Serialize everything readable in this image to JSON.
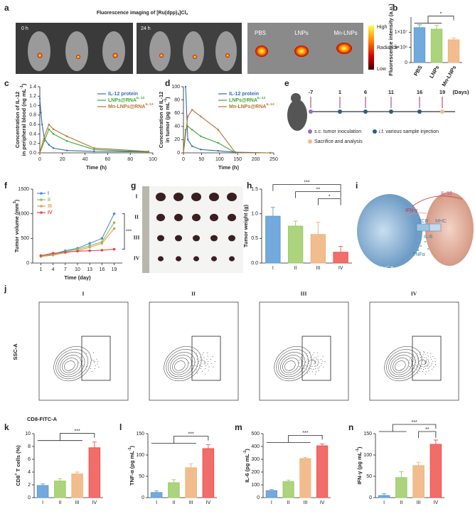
{
  "panel_labels": [
    "a",
    "b",
    "c",
    "d",
    "e",
    "f",
    "g",
    "h",
    "i",
    "j",
    "k",
    "l",
    "m",
    "n"
  ],
  "panel_a": {
    "title": [
      {
        "text": "Fluorescence imaging of [Ru(dpp)"
      },
      {
        "text": "3",
        "sub": true
      },
      {
        "text": "]Cl"
      },
      {
        "text": "2",
        "sub": true
      }
    ],
    "times": [
      "0 h",
      "24 h"
    ],
    "organs": [
      "PBS",
      "LNPs",
      "Mn-LNPs"
    ],
    "colorbar": [
      "High",
      "Radiance",
      "Low"
    ]
  },
  "panel_e": {
    "days": [
      "-7",
      "1",
      "6",
      "11",
      "16",
      "19"
    ],
    "unit": "(Days)",
    "legend": [
      [
        {
          "text": "s.c.",
          "italic": true
        },
        {
          "text": " tumor inoculation"
        }
      ],
      [
        {
          "text": "i.t.",
          "italic": true
        },
        {
          "text": " various sample injection"
        }
      ],
      [
        {
          "text": "Sacrifice and analysis"
        }
      ]
    ]
  },
  "panel_g": {
    "rows": [
      "I",
      "II",
      "III",
      "IV"
    ]
  },
  "panel_i": {
    "labels": [
      "IL-12",
      "IFN-γ",
      "TCR",
      "MHC",
      "IL-6",
      "TNFα"
    ],
    "cells": [
      [
        {
          "text": "CD8"
        },
        {
          "text": "+",
          "sup": true
        },
        {
          "text": " T cell"
        }
      ],
      [
        {
          "text": "Tumor cell"
        }
      ]
    ]
  },
  "panel_j": {
    "groups": [
      "I",
      "II",
      "III",
      "IV"
    ],
    "xlabel": "CD8-FITC-A",
    "ylabel": "SSC-A"
  },
  "chart_data": [
    {
      "type": "bar",
      "ylabel": [
        [
          {
            "text": "Fluorescence intensity (a.u.)"
          }
        ]
      ],
      "categories": [
        "PBS",
        "LNPs",
        "Mn-LNPs"
      ],
      "values": [
        11500000,
        11000000,
        7500000
      ],
      "errors": [
        1000000,
        1300000,
        600000
      ],
      "colors": [
        "#5b9bd5",
        "#9ccc65",
        "#f0b27a"
      ],
      "ylim": [
        0,
        15000000
      ],
      "yticks": [
        0,
        {
          "value": 5000000,
          "label": "5×10⁶"
        },
        {
          "value": 10000000,
          "label": "1×10⁷"
        }
      ],
      "x_label_rotation": -60,
      "significance": [
        {
          "from": [
            0,
            1
          ],
          "to": 2,
          "label": "*"
        }
      ]
    },
    {
      "type": "line",
      "xlabel": "Time (h)",
      "ylabel": [
        [
          {
            "text": "Concentration of IL-12"
          }
        ],
        [
          {
            "text": "in peripheral blood (ng mL"
          },
          {
            "text": "-1",
            "sup": true
          },
          {
            "text": ")"
          }
        ]
      ],
      "xlim": [
        0,
        100
      ],
      "xticks": [
        0,
        20,
        40,
        60,
        80,
        100
      ],
      "ylim": [
        0,
        1.4
      ],
      "yticks": [
        {
          "value": 0,
          "label": "0.0"
        },
        0.2,
        0.4,
        0.6,
        0.8,
        {
          "value": 1,
          "label": "1.0"
        },
        1.2,
        1.4
      ],
      "legend": "upper right",
      "series": [
        {
          "name": "IL-12 protein",
          "color": "#2f6db5",
          "x": [
            0,
            1,
            2,
            4,
            8,
            12,
            24,
            48,
            96
          ],
          "values": [
            1.15,
            0.85,
            0.6,
            0.3,
            0.17,
            0.1,
            0.05,
            0.03,
            0.02
          ]
        },
        {
          "name": [
            {
              "text": "LNPs@RNA"
            },
            {
              "text": "IL-12",
              "sup": true
            }
          ],
          "color": "#3aa935",
          "x": [
            0,
            4,
            8,
            12,
            24,
            48,
            96
          ],
          "values": [
            0,
            0.25,
            0.5,
            0.4,
            0.25,
            0.07,
            0.02
          ]
        },
        {
          "name": [
            {
              "text": "Mn-LNPs@RNA"
            },
            {
              "text": "IL-12",
              "sup": true
            }
          ],
          "color": "#b8732a",
          "x": [
            0,
            4,
            8,
            12,
            24,
            48,
            96
          ],
          "values": [
            0,
            0.35,
            0.6,
            0.5,
            0.35,
            0.1,
            0.03
          ]
        }
      ]
    },
    {
      "type": "line",
      "xlabel": "Time (h)",
      "ylabel": [
        [
          {
            "text": "Concentration of IL-12"
          }
        ],
        [
          {
            "text": "in tumor (pg mL"
          },
          {
            "text": "-1",
            "sup": true
          },
          {
            "text": ")"
          }
        ]
      ],
      "xlim": [
        0,
        250
      ],
      "xticks": [
        0,
        50,
        100,
        150,
        200,
        250
      ],
      "ylim": [
        0,
        100
      ],
      "yticks": [
        0,
        20,
        40,
        60,
        80,
        100
      ],
      "legend": "upper right",
      "series": [
        {
          "name": "IL-12 protein",
          "color": "#2f6db5",
          "x": [
            6,
            12,
            24,
            48,
            96,
            144,
            240
          ],
          "values": [
            100,
            20,
            10,
            5,
            3,
            1,
            0
          ]
        },
        {
          "name": [
            {
              "text": "LNPs@RNA"
            },
            {
              "text": "IL-12",
              "sup": true
            }
          ],
          "color": "#3aa935",
          "x": [
            0,
            6,
            12,
            24,
            48,
            96,
            144,
            240
          ],
          "values": [
            0,
            35,
            40,
            35,
            25,
            15,
            0,
            0
          ]
        },
        {
          "name": [
            {
              "text": "Mn-LNPs@RNA"
            },
            {
              "text": "IL-12",
              "sup": true
            }
          ],
          "color": "#b8732a",
          "x": [
            0,
            12,
            24,
            48,
            96,
            144,
            240
          ],
          "values": [
            0,
            55,
            65,
            55,
            35,
            0,
            0
          ]
        }
      ]
    },
    {
      "type": "line",
      "xlabel": "Time (day)",
      "ylabel": [
        [
          {
            "text": "Tumor volume (mm"
          },
          {
            "text": "3",
            "sup": true
          },
          {
            "text": ")"
          }
        ]
      ],
      "xlim": [
        -1,
        21
      ],
      "xticks": [
        1,
        4,
        7,
        10,
        13,
        16,
        19
      ],
      "ylim": [
        0,
        1500
      ],
      "yticks": [
        0,
        500,
        1000,
        1500
      ],
      "legend": "upper left",
      "markers": true,
      "series": [
        {
          "name": "I",
          "color": "#4a8fd6",
          "x": [
            1,
            4,
            7,
            10,
            13,
            16,
            19
          ],
          "values": [
            150,
            180,
            250,
            300,
            400,
            500,
            1000
          ]
        },
        {
          "name": "II",
          "color": "#8cc152",
          "x": [
            1,
            4,
            7,
            10,
            13,
            16,
            19
          ],
          "values": [
            140,
            170,
            230,
            280,
            350,
            430,
            820
          ]
        },
        {
          "name": "III",
          "color": "#e0a050",
          "x": [
            1,
            4,
            7,
            10,
            13,
            16,
            19
          ],
          "values": [
            130,
            160,
            210,
            250,
            320,
            400,
            700
          ]
        },
        {
          "name": "IV",
          "color": "#e8464a",
          "x": [
            1,
            4,
            7,
            10,
            13,
            16,
            19
          ],
          "values": [
            150,
            200,
            220,
            240,
            250,
            260,
            280
          ]
        }
      ],
      "annotation": "***"
    },
    {
      "type": "bar",
      "ylabel": [
        [
          {
            "text": "Tumor weight (g)"
          }
        ]
      ],
      "categories": [
        "I",
        "II",
        "III",
        "IV"
      ],
      "values": [
        0.95,
        0.75,
        0.58,
        0.22
      ],
      "errors": [
        0.18,
        0.1,
        0.25,
        0.12
      ],
      "colors": [
        "#5b9bd5",
        "#9ccc65",
        "#f0b27a",
        "#ef5350"
      ],
      "ylim": [
        0,
        1.5
      ],
      "yticks": [
        {
          "value": 0,
          "label": "0.0"
        },
        0.5,
        {
          "value": 1,
          "label": "1.0"
        },
        1.5
      ],
      "significance": [
        {
          "from": [
            2,
            2
          ],
          "to": 3,
          "label": "*"
        },
        {
          "from": [
            1,
            1
          ],
          "to": 3,
          "label": "**"
        },
        {
          "from": [
            0,
            0
          ],
          "to": 3,
          "label": "***"
        }
      ]
    },
    {
      "type": "bar",
      "ylabel": [
        [
          {
            "text": "CD8"
          },
          {
            "text": "+",
            "sup": true
          },
          {
            "text": " T cells (%)"
          }
        ]
      ],
      "categories": [
        "I",
        "II",
        "III",
        "IV"
      ],
      "values": [
        1.9,
        2.6,
        3.7,
        7.8
      ],
      "errors": [
        0.25,
        0.35,
        0.3,
        0.9
      ],
      "colors": [
        "#5b9bd5",
        "#9ccc65",
        "#f0b27a",
        "#ef5350"
      ],
      "ylim": [
        0,
        10
      ],
      "yticks": [
        0,
        2,
        4,
        6,
        8,
        10
      ],
      "significance": [
        {
          "from": [
            0,
            2
          ],
          "to": 3,
          "label": "***"
        }
      ]
    },
    {
      "type": "bar",
      "ylabel": [
        [
          {
            "text": "TNF-α (pg mL"
          },
          {
            "text": "-1",
            "sup": true
          },
          {
            "text": ")"
          }
        ]
      ],
      "categories": [
        "I",
        "II",
        "III",
        "IV"
      ],
      "values": [
        12,
        35,
        70,
        115
      ],
      "errors": [
        4,
        7,
        9,
        9
      ],
      "colors": [
        "#5b9bd5",
        "#9ccc65",
        "#f0b27a",
        "#ef5350"
      ],
      "ylim": [
        0,
        150
      ],
      "yticks": [
        0,
        50,
        100,
        150
      ],
      "significance": [
        {
          "from": [
            0,
            2
          ],
          "to": 3,
          "label": "***"
        }
      ]
    },
    {
      "type": "bar",
      "ylabel": [
        [
          {
            "text": "IL-6 (pg mL"
          },
          {
            "text": "-1",
            "sup": true
          },
          {
            "text": ")"
          }
        ]
      ],
      "categories": [
        "I",
        "II",
        "III",
        "IV"
      ],
      "values": [
        55,
        125,
        305,
        405
      ],
      "errors": [
        8,
        12,
        10,
        15
      ],
      "colors": [
        "#5b9bd5",
        "#9ccc65",
        "#f0b27a",
        "#ef5350"
      ],
      "ylim": [
        0,
        500
      ],
      "yticks": [
        0,
        100,
        200,
        300,
        400,
        500
      ],
      "significance": [
        {
          "from": [
            0,
            2
          ],
          "to": 3,
          "label": "***"
        }
      ]
    },
    {
      "type": "bar",
      "ylabel": [
        [
          {
            "text": "IFN-γ (pg mL"
          },
          {
            "text": "-1",
            "sup": true
          },
          {
            "text": ")"
          }
        ]
      ],
      "categories": [
        "I",
        "II",
        "III",
        "IV"
      ],
      "values": [
        5,
        47,
        75,
        125
      ],
      "errors": [
        4,
        14,
        8,
        10
      ],
      "colors": [
        "#5b9bd5",
        "#9ccc65",
        "#f0b27a",
        "#ef5350"
      ],
      "ylim": [
        0,
        150
      ],
      "yticks": [
        0,
        50,
        100,
        150
      ],
      "significance": [
        {
          "from": [
            2,
            2
          ],
          "to": 3,
          "label": "**"
        },
        {
          "from": [
            0,
            1
          ],
          "to": 3,
          "label": "***"
        }
      ]
    }
  ]
}
